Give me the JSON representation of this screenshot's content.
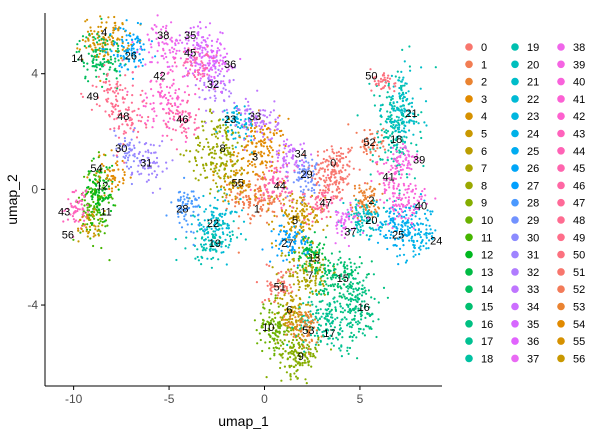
{
  "chart_data": {
    "type": "scatter",
    "xlabel": "umap_1",
    "ylabel": "umap_2",
    "xlim": [
      -11.5,
      9.3
    ],
    "ylim": [
      -6.8,
      6.1
    ],
    "xticks": [
      -10,
      -5,
      0,
      5
    ],
    "yticks": [
      -4,
      0,
      4
    ],
    "grid": false,
    "legend_position": "right",
    "legend_columns": 3,
    "clusters": [
      {
        "id": "0",
        "color": "#F8766D",
        "cx": 3.6,
        "cy": 0.6,
        "sx": 0.8,
        "sy": 0.7,
        "n": 160,
        "lx": 3.6,
        "ly": 0.9
      },
      {
        "id": "1",
        "color": "#F27D53",
        "cx": -0.3,
        "cy": -0.3,
        "sx": 0.9,
        "sy": 0.6,
        "n": 140,
        "lx": -0.4,
        "ly": -0.7
      },
      {
        "id": "2",
        "color": "#EA8331",
        "cx": 5.3,
        "cy": -0.4,
        "sx": 0.5,
        "sy": 0.4,
        "n": 80,
        "lx": 5.6,
        "ly": -0.4
      },
      {
        "id": "3",
        "color": "#E18A00",
        "cx": -0.2,
        "cy": 1.4,
        "sx": 0.9,
        "sy": 0.7,
        "n": 140,
        "lx": -0.5,
        "ly": 1.1
      },
      {
        "id": "4",
        "color": "#D69100",
        "cx": -8.3,
        "cy": 5.2,
        "sx": 0.8,
        "sy": 0.5,
        "n": 120,
        "lx": -8.4,
        "ly": 5.4
      },
      {
        "id": "5",
        "color": "#C99800",
        "cx": 1.8,
        "cy": -1.0,
        "sx": 0.9,
        "sy": 0.6,
        "n": 140,
        "lx": 1.6,
        "ly": -1.1
      },
      {
        "id": "6",
        "color": "#BB9D00",
        "cx": 1.4,
        "cy": -4.3,
        "sx": 0.6,
        "sy": 0.6,
        "n": 110,
        "lx": 1.3,
        "ly": -4.2
      },
      {
        "id": "7",
        "color": "#ABA300",
        "cx": 2.3,
        "cy": -2.8,
        "sx": 0.8,
        "sy": 0.6,
        "n": 130,
        "lx": 2.4,
        "ly": -3.0
      },
      {
        "id": "8",
        "color": "#9AA800",
        "cx": -2.4,
        "cy": 1.3,
        "sx": 1.0,
        "sy": 0.9,
        "n": 180,
        "lx": -2.2,
        "ly": 1.4
      },
      {
        "id": "9",
        "color": "#85AD00",
        "cx": 1.8,
        "cy": -5.7,
        "sx": 0.7,
        "sy": 0.5,
        "n": 140,
        "lx": 1.9,
        "ly": -5.8
      },
      {
        "id": "10",
        "color": "#6BB100",
        "cx": 0.5,
        "cy": -4.8,
        "sx": 0.6,
        "sy": 0.6,
        "n": 110,
        "lx": 0.2,
        "ly": -4.8
      },
      {
        "id": "11",
        "color": "#45B500",
        "cx": -8.9,
        "cy": -0.5,
        "sx": 0.5,
        "sy": 0.9,
        "n": 130,
        "lx": -8.3,
        "ly": -0.8
      },
      {
        "id": "12",
        "color": "#00B81F",
        "cx": -8.6,
        "cy": 0.0,
        "sx": 0.5,
        "sy": 0.6,
        "n": 80,
        "lx": -8.5,
        "ly": 0.1
      },
      {
        "id": "13",
        "color": "#00BB44",
        "cx": 2.4,
        "cy": -2.2,
        "sx": 0.5,
        "sy": 0.4,
        "n": 70,
        "lx": 2.6,
        "ly": -2.4
      },
      {
        "id": "14",
        "color": "#00BD5C",
        "cx": -8.6,
        "cy": 4.6,
        "sx": 0.8,
        "sy": 0.6,
        "n": 110,
        "lx": -9.8,
        "ly": 4.5
      },
      {
        "id": "15",
        "color": "#00BF70",
        "cx": 3.9,
        "cy": -3.1,
        "sx": 0.8,
        "sy": 0.7,
        "n": 140,
        "lx": 4.1,
        "ly": -3.1
      },
      {
        "id": "16",
        "color": "#00C082",
        "cx": 4.8,
        "cy": -4.1,
        "sx": 0.8,
        "sy": 0.8,
        "n": 150,
        "lx": 5.2,
        "ly": -4.1
      },
      {
        "id": "17",
        "color": "#00C192",
        "cx": 3.2,
        "cy": -4.6,
        "sx": 1.0,
        "sy": 0.6,
        "n": 150,
        "lx": 3.4,
        "ly": -5.0
      },
      {
        "id": "18",
        "color": "#00C1A2",
        "cx": 6.8,
        "cy": 2.1,
        "sx": 0.8,
        "sy": 1.3,
        "n": 170,
        "lx": 6.9,
        "ly": 1.7
      },
      {
        "id": "19",
        "color": "#00C0B0",
        "cx": -2.8,
        "cy": -1.8,
        "sx": 0.8,
        "sy": 0.5,
        "n": 90,
        "lx": -2.6,
        "ly": -1.9
      },
      {
        "id": "20",
        "color": "#00BFBD",
        "cx": 5.2,
        "cy": -1.0,
        "sx": 0.7,
        "sy": 0.4,
        "n": 90,
        "lx": 5.6,
        "ly": -1.1
      },
      {
        "id": "21",
        "color": "#00BDC9",
        "cx": 7.2,
        "cy": 2.7,
        "sx": 0.7,
        "sy": 0.9,
        "n": 120,
        "lx": 7.7,
        "ly": 2.6
      },
      {
        "id": "22",
        "color": "#00BAD5",
        "cx": -2.5,
        "cy": -1.2,
        "sx": 0.8,
        "sy": 0.6,
        "n": 100,
        "lx": -2.7,
        "ly": -1.2
      },
      {
        "id": "23",
        "color": "#00B6DF",
        "cx": -1.4,
        "cy": 2.3,
        "sx": 0.6,
        "sy": 0.4,
        "n": 70,
        "lx": -1.8,
        "ly": 2.4
      },
      {
        "id": "24",
        "color": "#00B2E8",
        "cx": 8.0,
        "cy": -1.5,
        "sx": 0.7,
        "sy": 0.6,
        "n": 110,
        "lx": 9.0,
        "ly": -1.8
      },
      {
        "id": "25",
        "color": "#00ACF1",
        "cx": 6.9,
        "cy": -1.3,
        "sx": 0.7,
        "sy": 0.5,
        "n": 100,
        "lx": 7.0,
        "ly": -1.6
      },
      {
        "id": "26",
        "color": "#00A6F8",
        "cx": -7.1,
        "cy": 4.8,
        "sx": 0.7,
        "sy": 0.5,
        "n": 90,
        "lx": -7.0,
        "ly": 4.6
      },
      {
        "id": "27",
        "color": "#00A0FF",
        "cx": 1.4,
        "cy": -1.8,
        "sx": 0.6,
        "sy": 0.4,
        "n": 70,
        "lx": 1.2,
        "ly": -1.9
      },
      {
        "id": "28",
        "color": "#4A99FF",
        "cx": -4.1,
        "cy": -0.6,
        "sx": 0.5,
        "sy": 0.5,
        "n": 70,
        "lx": -4.3,
        "ly": -0.7
      },
      {
        "id": "29",
        "color": "#7192FF",
        "cx": 2.1,
        "cy": 0.5,
        "sx": 0.5,
        "sy": 0.4,
        "n": 70,
        "lx": 2.2,
        "ly": 0.5
      },
      {
        "id": "30",
        "color": "#8B8BFF",
        "cx": -7.2,
        "cy": 1.4,
        "sx": 0.5,
        "sy": 0.5,
        "n": 50,
        "lx": -7.5,
        "ly": 1.4
      },
      {
        "id": "31",
        "color": "#9F84FF",
        "cx": -6.0,
        "cy": 0.9,
        "sx": 0.6,
        "sy": 0.6,
        "n": 60,
        "lx": -6.2,
        "ly": 0.9
      },
      {
        "id": "32",
        "color": "#B07CFF",
        "cx": -2.5,
        "cy": 3.5,
        "sx": 0.6,
        "sy": 0.6,
        "n": 60,
        "lx": -2.7,
        "ly": 3.6
      },
      {
        "id": "33",
        "color": "#BF75FF",
        "cx": -0.3,
        "cy": 2.4,
        "sx": 0.7,
        "sy": 0.5,
        "n": 80,
        "lx": -0.5,
        "ly": 2.5
      },
      {
        "id": "34",
        "color": "#CC6EFF",
        "cx": 1.3,
        "cy": 1.1,
        "sx": 0.5,
        "sy": 0.4,
        "n": 60,
        "lx": 1.9,
        "ly": 1.2
      },
      {
        "id": "35",
        "color": "#D767FF",
        "cx": -3.4,
        "cy": 4.8,
        "sx": 0.8,
        "sy": 0.6,
        "n": 110,
        "lx": -3.9,
        "ly": 5.3
      },
      {
        "id": "36",
        "color": "#E163FE",
        "cx": -2.6,
        "cy": 4.3,
        "sx": 0.6,
        "sy": 0.5,
        "n": 70,
        "lx": -1.8,
        "ly": 4.3
      },
      {
        "id": "37",
        "color": "#E96AF4",
        "cx": 4.2,
        "cy": -1.1,
        "sx": 0.5,
        "sy": 0.4,
        "n": 60,
        "lx": 4.5,
        "ly": -1.5
      },
      {
        "id": "38",
        "color": "#F066EA",
        "cx": -5.3,
        "cy": 5.0,
        "sx": 0.7,
        "sy": 0.5,
        "n": 70,
        "lx": -5.3,
        "ly": 5.3
      },
      {
        "id": "39",
        "color": "#F564E3",
        "cx": 7.4,
        "cy": 1.0,
        "sx": 0.5,
        "sy": 0.4,
        "n": 50,
        "lx": 8.1,
        "ly": 1.0
      },
      {
        "id": "40",
        "color": "#F962DB",
        "cx": 7.5,
        "cy": -0.5,
        "sx": 0.8,
        "sy": 0.5,
        "n": 80,
        "lx": 8.2,
        "ly": -0.6
      },
      {
        "id": "41",
        "color": "#FC61D4",
        "cx": 6.6,
        "cy": 0.4,
        "sx": 0.5,
        "sy": 0.5,
        "n": 60,
        "lx": 6.5,
        "ly": 0.4
      },
      {
        "id": "42",
        "color": "#FE61CF",
        "cx": -5.2,
        "cy": 3.2,
        "sx": 0.9,
        "sy": 0.7,
        "n": 100,
        "lx": -5.5,
        "ly": 3.9
      },
      {
        "id": "43",
        "color": "#FF62BC",
        "cx": -9.7,
        "cy": -0.6,
        "sx": 0.5,
        "sy": 0.5,
        "n": 60,
        "lx": -10.5,
        "ly": -0.8
      },
      {
        "id": "44",
        "color": "#FF63B6",
        "cx": 0.6,
        "cy": 0.2,
        "sx": 0.6,
        "sy": 0.4,
        "n": 60,
        "lx": 0.8,
        "ly": 0.1
      },
      {
        "id": "45",
        "color": "#FF65AE",
        "cx": -3.5,
        "cy": 4.3,
        "sx": 0.6,
        "sy": 0.4,
        "n": 60,
        "lx": -3.9,
        "ly": 4.7
      },
      {
        "id": "46",
        "color": "#FF67A4",
        "cx": -4.4,
        "cy": 2.4,
        "sx": 0.6,
        "sy": 0.5,
        "n": 60,
        "lx": -4.3,
        "ly": 2.4
      },
      {
        "id": "47",
        "color": "#FF6A98",
        "cx": 3.0,
        "cy": -0.5,
        "sx": 0.6,
        "sy": 0.4,
        "n": 60,
        "lx": 3.2,
        "ly": -0.5
      },
      {
        "id": "48",
        "color": "#FF6C91",
        "cx": -7.3,
        "cy": 2.6,
        "sx": 0.7,
        "sy": 0.8,
        "n": 80,
        "lx": -7.4,
        "ly": 2.5
      },
      {
        "id": "49",
        "color": "#FF6E8A",
        "cx": -8.2,
        "cy": 3.3,
        "sx": 0.6,
        "sy": 0.6,
        "n": 50,
        "lx": -9.0,
        "ly": 3.2
      },
      {
        "id": "50",
        "color": "#FC717F",
        "cx": 6.3,
        "cy": 3.7,
        "sx": 0.4,
        "sy": 0.3,
        "n": 40,
        "lx": 5.6,
        "ly": 3.9
      },
      {
        "id": "51",
        "color": "#F8766D",
        "cx": 0.8,
        "cy": -3.3,
        "sx": 0.5,
        "sy": 0.4,
        "n": 60,
        "lx": 0.8,
        "ly": -3.4
      },
      {
        "id": "52",
        "color": "#F37B59",
        "cx": 5.6,
        "cy": 1.6,
        "sx": 0.5,
        "sy": 0.4,
        "n": 50,
        "lx": 5.5,
        "ly": 1.6
      },
      {
        "id": "53",
        "color": "#EA8331",
        "cx": 2.1,
        "cy": -4.8,
        "sx": 0.6,
        "sy": 0.5,
        "n": 80,
        "lx": 2.3,
        "ly": -4.9
      },
      {
        "id": "54",
        "color": "#E18A00",
        "cx": -8.0,
        "cy": 0.5,
        "sx": 0.6,
        "sy": 0.5,
        "n": 50,
        "lx": -8.8,
        "ly": 0.7
      },
      {
        "id": "55",
        "color": "#D69100",
        "cx": -1.4,
        "cy": 0.3,
        "sx": 0.7,
        "sy": 0.5,
        "n": 70,
        "lx": -1.4,
        "ly": 0.2
      },
      {
        "id": "56",
        "color": "#C99800",
        "cx": -9.2,
        "cy": -1.3,
        "sx": 0.4,
        "sy": 0.4,
        "n": 40,
        "lx": -10.3,
        "ly": -1.6
      }
    ]
  }
}
